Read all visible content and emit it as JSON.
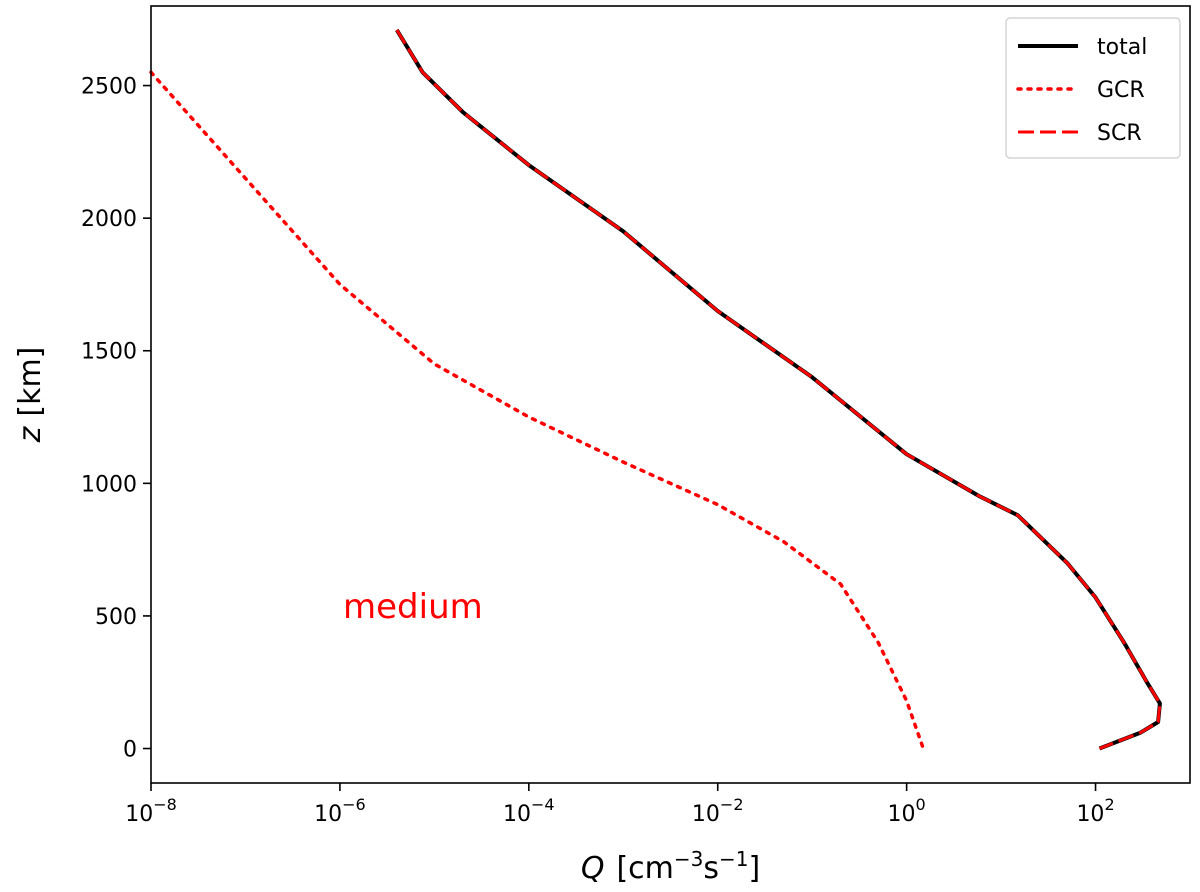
{
  "chart_data": {
    "type": "line",
    "title": "",
    "xlabel": {
      "symbol": "Q",
      "unit": "[cm",
      "sup1": "−3",
      "mid": "s",
      "sup2": "−1",
      "close": "]"
    },
    "ylabel": {
      "symbol": "z",
      "unit": "[km]"
    },
    "xscale": "log",
    "xlim": [
      1e-08,
      1000
    ],
    "ylim": [
      -130,
      2800
    ],
    "x_ticks": [
      {
        "value": 1e-08,
        "base": "10",
        "exp": "−8"
      },
      {
        "value": 1e-06,
        "base": "10",
        "exp": "−6"
      },
      {
        "value": 0.0001,
        "base": "10",
        "exp": "−4"
      },
      {
        "value": 0.01,
        "base": "10",
        "exp": "−2"
      },
      {
        "value": 1,
        "base": "10",
        "exp": "0"
      },
      {
        "value": 100,
        "base": "10",
        "exp": "2"
      }
    ],
    "y_ticks": [
      {
        "value": 0,
        "label": "0"
      },
      {
        "value": 500,
        "label": "500"
      },
      {
        "value": 1000,
        "label": "1000"
      },
      {
        "value": 1500,
        "label": "1500"
      },
      {
        "value": 2000,
        "label": "2000"
      },
      {
        "value": 2500,
        "label": "2500"
      }
    ],
    "grid": false,
    "legend_position": "top-right",
    "annotation": {
      "text": "medium",
      "color": "#ff0000"
    },
    "series": [
      {
        "name": "total",
        "color": "#000000",
        "style": "solid",
        "points": [
          [
            4e-06,
            2710
          ],
          [
            7.5e-06,
            2550
          ],
          [
            2e-05,
            2400
          ],
          [
            0.0001,
            2200
          ],
          [
            0.001,
            1950
          ],
          [
            0.01,
            1650
          ],
          [
            0.1,
            1400
          ],
          [
            1,
            1110
          ],
          [
            6,
            950
          ],
          [
            15,
            880
          ],
          [
            50,
            700
          ],
          [
            100,
            570
          ],
          [
            200,
            400
          ],
          [
            350,
            250
          ],
          [
            480,
            170
          ],
          [
            460,
            100
          ],
          [
            300,
            60
          ],
          [
            110,
            0
          ]
        ]
      },
      {
        "name": "GCR",
        "color": "#ff0000",
        "style": "dotted",
        "points": [
          [
            1e-08,
            2550
          ],
          [
            1e-07,
            2150
          ],
          [
            1e-06,
            1750
          ],
          [
            1e-05,
            1450
          ],
          [
            0.0001,
            1250
          ],
          [
            0.001,
            1080
          ],
          [
            0.01,
            920
          ],
          [
            0.05,
            780
          ],
          [
            0.2,
            620
          ],
          [
            0.5,
            400
          ],
          [
            1,
            180
          ],
          [
            1.5,
            0
          ]
        ]
      },
      {
        "name": "SCR",
        "color": "#ff0000",
        "style": "dashed",
        "points": [
          [
            4e-06,
            2710
          ],
          [
            7.5e-06,
            2550
          ],
          [
            2e-05,
            2400
          ],
          [
            0.0001,
            2200
          ],
          [
            0.001,
            1950
          ],
          [
            0.01,
            1650
          ],
          [
            0.1,
            1400
          ],
          [
            1,
            1110
          ],
          [
            6,
            950
          ],
          [
            15,
            880
          ],
          [
            50,
            700
          ],
          [
            100,
            570
          ],
          [
            200,
            400
          ],
          [
            350,
            250
          ],
          [
            480,
            170
          ],
          [
            460,
            100
          ],
          [
            300,
            60
          ],
          [
            110,
            0
          ]
        ]
      }
    ]
  }
}
